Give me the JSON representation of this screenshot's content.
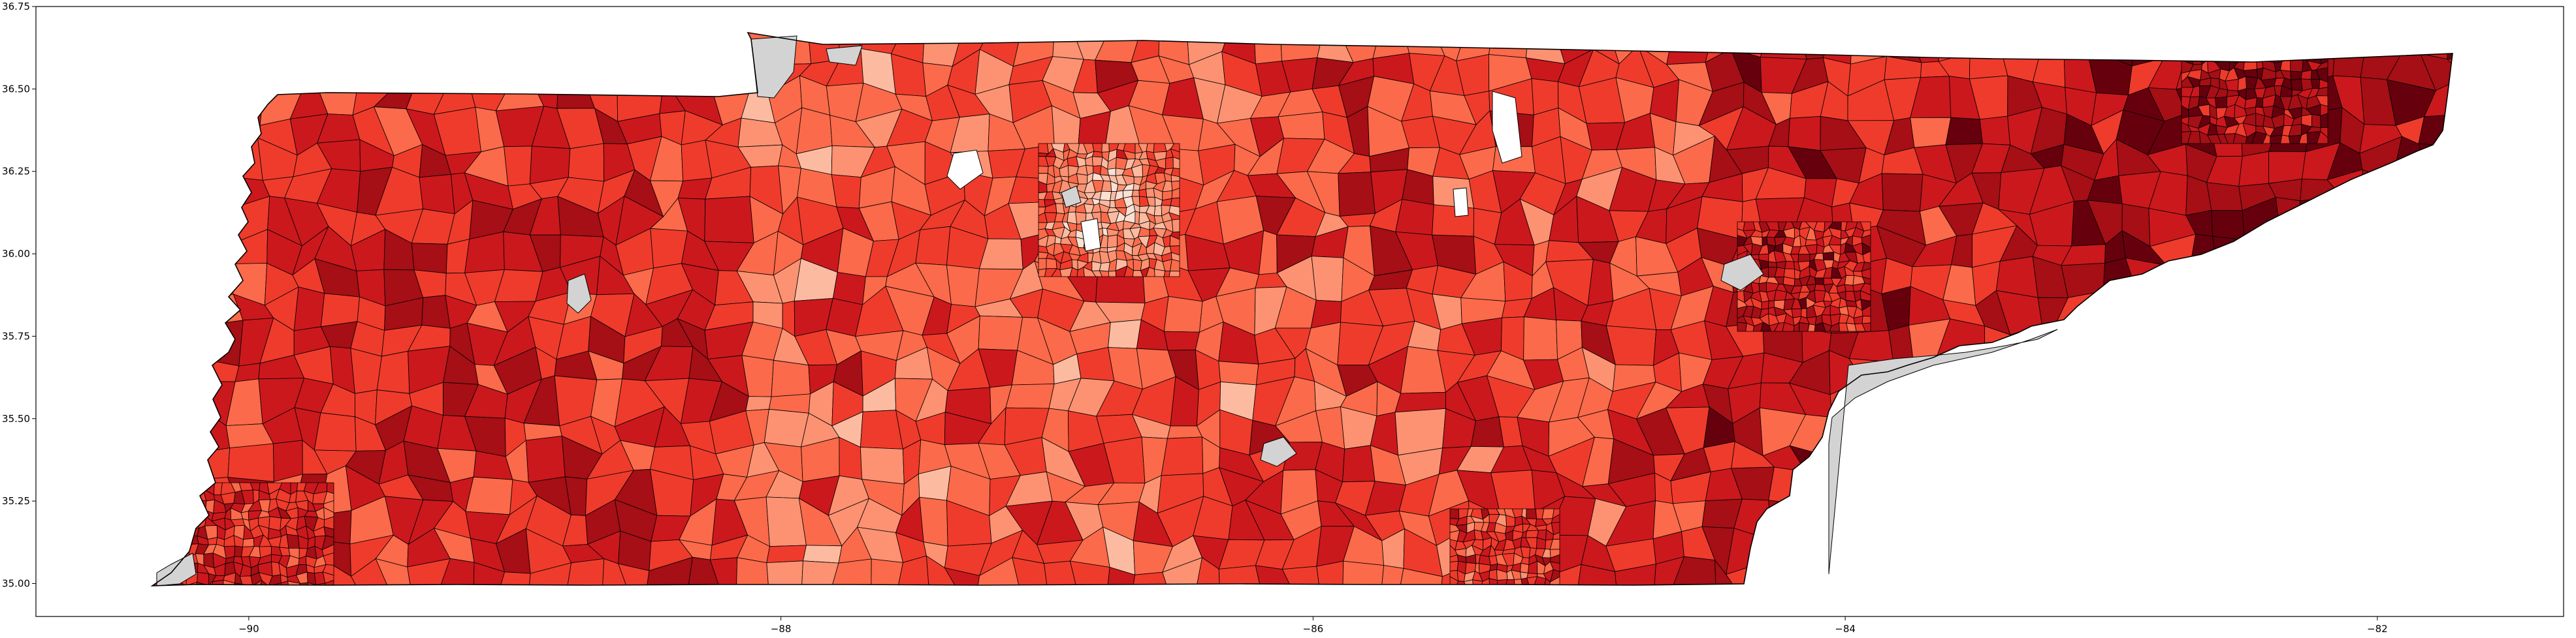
{
  "chart_data": {
    "type": "choropleth",
    "title": "",
    "xlabel": "",
    "ylabel": "",
    "xlim": [
      -90.8,
      -81.3
    ],
    "ylim": [
      34.9,
      36.75
    ],
    "x_ticks": [
      -90,
      -88,
      -86,
      -84,
      -82
    ],
    "y_ticks": [
      35.0,
      35.25,
      35.5,
      35.75,
      36.0,
      36.25,
      36.5,
      36.75
    ],
    "x_tick_labels": [
      "−90",
      "−88",
      "−86",
      "−84",
      "−82"
    ],
    "y_tick_labels": [
      "35.00",
      "35.25",
      "35.50",
      "35.75",
      "36.00",
      "36.25",
      "36.50",
      "36.75"
    ],
    "colormap": "Reds",
    "missing_color": "#d3d3d3",
    "edge_color": "#000000",
    "grid": false,
    "legend": "none"
  },
  "colors": {
    "ramp": [
      "#fee0d2",
      "#fcbba1",
      "#fc9272",
      "#fb6a4a",
      "#ef3b2c",
      "#cb181d",
      "#a50f15",
      "#67000d"
    ],
    "missing": "#d3d3d3",
    "outline": "#000000"
  }
}
